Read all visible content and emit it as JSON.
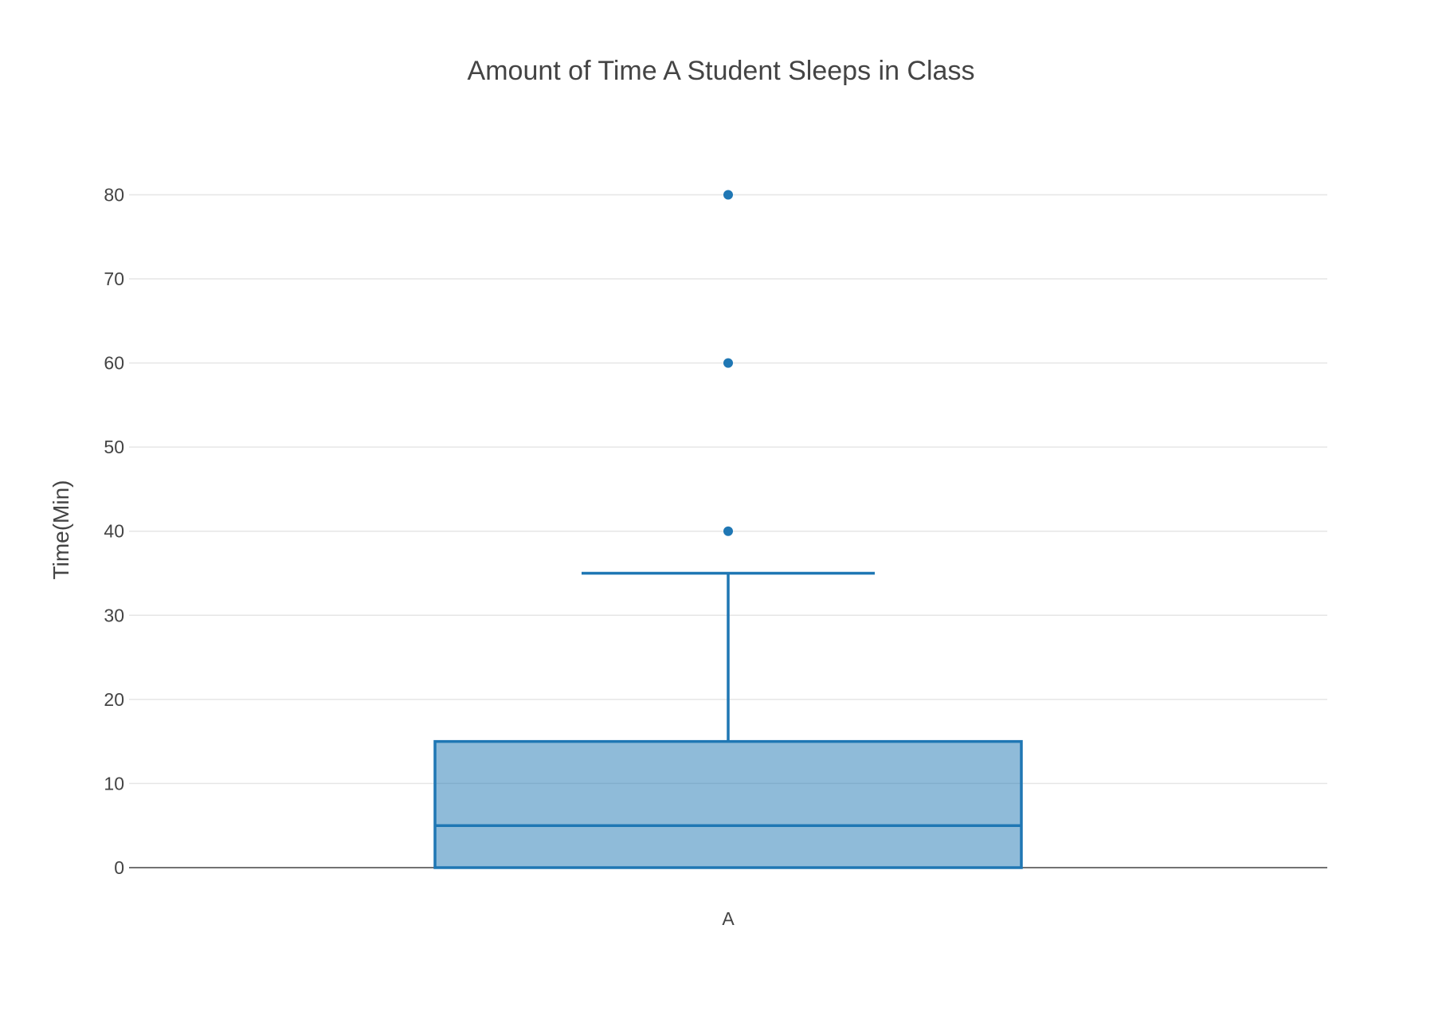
{
  "chart_data": {
    "type": "box",
    "title": "Amount of Time A Student Sleeps in Class",
    "xlabel": "",
    "ylabel": "Time(Min)",
    "ylim": [
      0,
      88
    ],
    "yticks": [
      0,
      10,
      20,
      30,
      40,
      50,
      60,
      70,
      80
    ],
    "grid": true,
    "categories": [
      "A"
    ],
    "boxes": [
      {
        "category": "A",
        "lower_whisker": 0,
        "q1": 0,
        "median": 5,
        "q3": 15,
        "upper_whisker": 35,
        "outliers": [
          40,
          60,
          80
        ]
      }
    ],
    "colors": {
      "line": "#1f77b4",
      "fill": "#1f77b4",
      "fill_opacity": 0.5
    }
  }
}
